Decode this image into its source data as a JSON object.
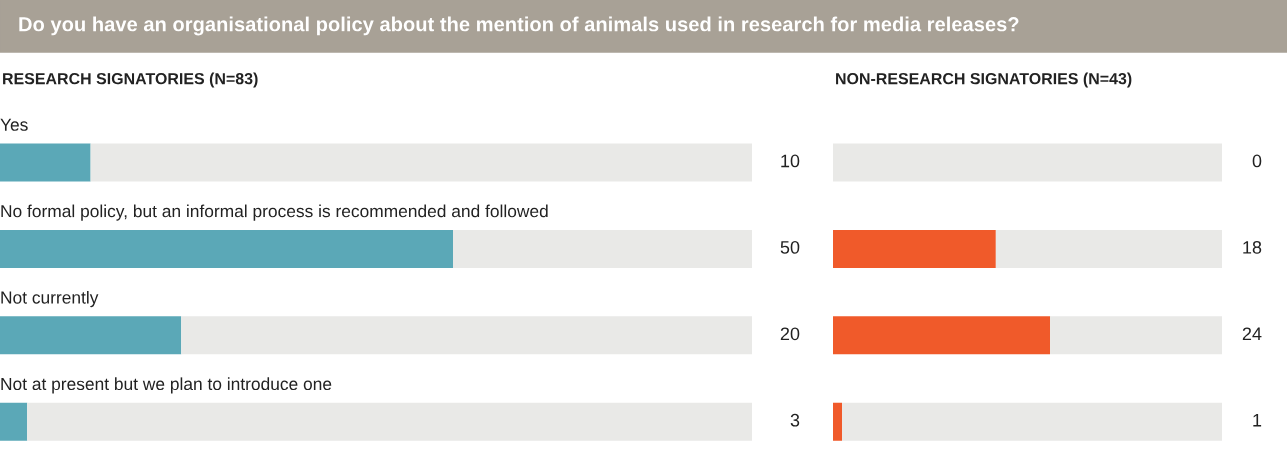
{
  "chart_data": [
    {
      "type": "bar",
      "orientation": "horizontal",
      "title": "Do you have an organisational policy about the mention of animals used in research for media releases?",
      "subtitle": "RESEARCH SIGNATORIES (N=83)",
      "categories": [
        "Yes",
        "No formal policy, but an informal process is recommended and followed",
        "Not currently",
        "Not at present but we plan to introduce one"
      ],
      "series": [
        {
          "color": "#5ba8b7",
          "values": [
            10,
            50,
            20,
            3
          ],
          "value_labels": [
            "10",
            "50",
            "20",
            "3"
          ]
        },
        {
          "color": "#e9e9e7",
          "values": [
            73,
            33,
            63,
            80
          ]
        }
      ],
      "stacked": true,
      "xlim": [
        0,
        83
      ],
      "tick_labels": false
    },
    {
      "type": "bar",
      "orientation": "horizontal",
      "subtitle": "NON-RESEARCH SIGNATORIES (N=43)",
      "categories": [
        null,
        null,
        null,
        null
      ],
      "series": [
        {
          "color": "#f05a2a",
          "values": [
            0,
            18,
            24,
            1
          ],
          "value_labels": [
            "0",
            "18",
            "24",
            "1"
          ]
        },
        {
          "color": "#e9e9e7",
          "values": [
            43,
            25,
            19,
            42
          ]
        }
      ],
      "stacked": true,
      "xlim": [
        0,
        43
      ],
      "tick_labels": false
    }
  ]
}
